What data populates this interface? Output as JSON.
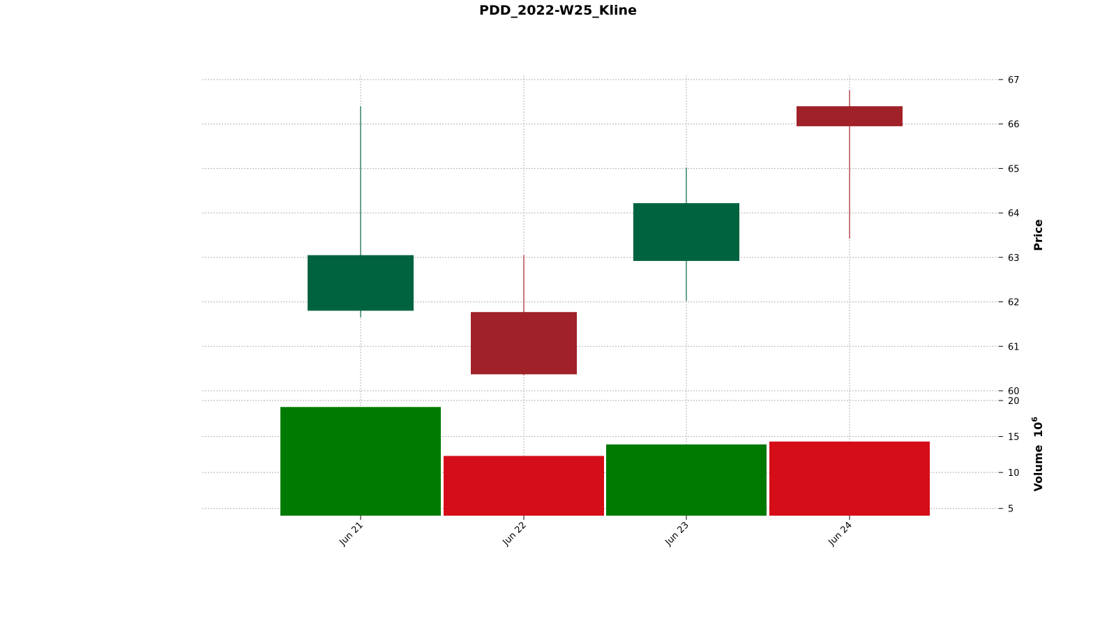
{
  "chart_data": {
    "type": "candlestick",
    "title": "PDD_2022-W25_Kline",
    "categories": [
      "Jun 21",
      "Jun 22",
      "Jun 23",
      "Jun 24"
    ],
    "ohlc": [
      {
        "date": "Jun 21",
        "open": 61.8,
        "high": 66.4,
        "low": 61.65,
        "close": 63.05
      },
      {
        "date": "Jun 22",
        "open": 61.77,
        "high": 63.05,
        "low": 60.35,
        "close": 60.37
      },
      {
        "date": "Jun 23",
        "open": 62.92,
        "high": 65.02,
        "low": 62.02,
        "close": 64.22
      },
      {
        "date": "Jun 24",
        "open": 66.4,
        "high": 66.76,
        "low": 63.42,
        "close": 65.95
      }
    ],
    "volume": [
      19.1,
      12.3,
      13.9,
      14.3
    ],
    "volume_unit_label": "10^6",
    "price_axis": {
      "label": "Price",
      "range": [
        60,
        67
      ],
      "ticks": [
        60,
        61,
        62,
        63,
        64,
        65,
        66,
        67
      ]
    },
    "volume_axis": {
      "label": "Volume",
      "range": [
        4,
        20
      ],
      "ticks": [
        5,
        10,
        15,
        20
      ]
    },
    "grid": true,
    "colors": {
      "up_candle": "#006340",
      "down_candle": "#a02128",
      "up_volume": "#007a00",
      "down_volume": "#d50d18"
    }
  }
}
